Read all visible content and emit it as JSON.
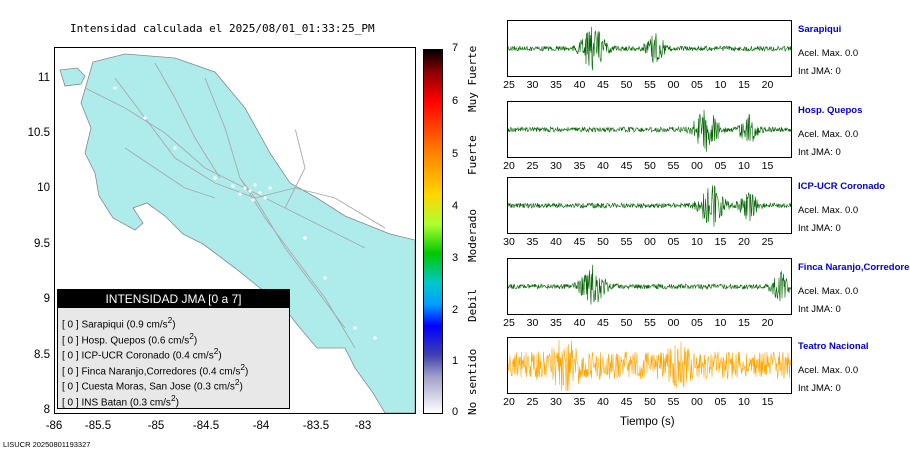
{
  "map": {
    "title": "Intensidad calculada el 2025/08/01_01:33:25_PM",
    "y_ticks": [
      "11",
      "10.5",
      "10",
      "9.5",
      "9",
      "8.5",
      "8"
    ],
    "x_ticks": [
      "-86",
      "-85.5",
      "-85",
      "-84.5",
      "-84",
      "-83.5",
      "-83"
    ],
    "land_color": "#aeecec"
  },
  "legend": {
    "title": "INTENSIDAD JMA [0 a 7]",
    "items": [
      {
        "text": "[ 0 ]  Sarapiqui (0.9 cm/s",
        "sup": "2",
        "end": ")"
      },
      {
        "text": "[ 0 ]  Hosp. Quepos (0.6 cm/s",
        "sup": "2",
        "end": ")"
      },
      {
        "text": "[ 0 ]  ICP-UCR Coronado (0.4 cm/s",
        "sup": "2",
        "end": ")"
      },
      {
        "text": "[ 0 ]  Finca Naranjo,Corredores (0.4 cm/s",
        "sup": "2",
        "end": ")"
      },
      {
        "text": "[ 0 ]  Cuesta Moras, San Jose (0.3 cm/s",
        "sup": "2",
        "end": ")"
      },
      {
        "text": "[ 0 ]  INS Batan (0.3 cm/s",
        "sup": "2",
        "end": ")"
      }
    ]
  },
  "colorbar": {
    "ticks": [
      "7",
      "6",
      "5",
      "4",
      "3",
      "2",
      "1",
      "0"
    ],
    "labels": [
      "Muy Fuerte",
      "Fuerte",
      "Moderado",
      "Debil",
      "No sentido"
    ]
  },
  "stations": [
    {
      "name": "Sarapiqui",
      "acel": "Acel. Max. 0.0",
      "int": "Int JMA: 0",
      "color": "#006400",
      "ticks": [
        "25",
        "30",
        "35",
        "40",
        "45",
        "50",
        "55",
        "00",
        "05",
        "10",
        "15",
        "20"
      ],
      "first": 25,
      "burst": 0.3,
      "burst2": 0.52
    },
    {
      "name": "Hosp. Quepos",
      "acel": "Acel. Max. 0.0",
      "int": "Int JMA: 0",
      "color": "#006400",
      "ticks": [
        "20",
        "25",
        "30",
        "35",
        "40",
        "45",
        "50",
        "55",
        "00",
        "05",
        "10",
        "15"
      ],
      "first": 20,
      "burst": 0.7,
      "burst2": 0.85
    },
    {
      "name": "ICP-UCR Coronado",
      "acel": "Acel. Max. 0.0",
      "int": "Int JMA: 0",
      "color": "#006400",
      "ticks": [
        "30",
        "35",
        "40",
        "45",
        "50",
        "55",
        "00",
        "05",
        "10",
        "15",
        "20",
        "25"
      ],
      "first": 30,
      "burst": 0.72,
      "burst2": 0.85
    },
    {
      "name": "Finca Naranjo,Corredores",
      "acel": "Acel. Max. 0.0",
      "int": "Int JMA: 0",
      "color": "#006400",
      "ticks": [
        "25",
        "30",
        "35",
        "40",
        "45",
        "50",
        "55",
        "00",
        "05",
        "10",
        "15",
        "20"
      ],
      "first": 25,
      "burst": 0.3,
      "burst2": 0.96
    },
    {
      "name": "Teatro Nacional",
      "acel": "Acel. Max. 0.0",
      "int": "Int JMA: 0",
      "color": "#ffa500",
      "ticks": [
        "20",
        "25",
        "30",
        "35",
        "40",
        "45",
        "50",
        "55",
        "00",
        "05",
        "10",
        "15"
      ],
      "first": 20,
      "burst": 0.2,
      "burst2": 0.6
    }
  ],
  "time_label": "Tiempo (s)",
  "footer": "LISUCR 20250801193327"
}
